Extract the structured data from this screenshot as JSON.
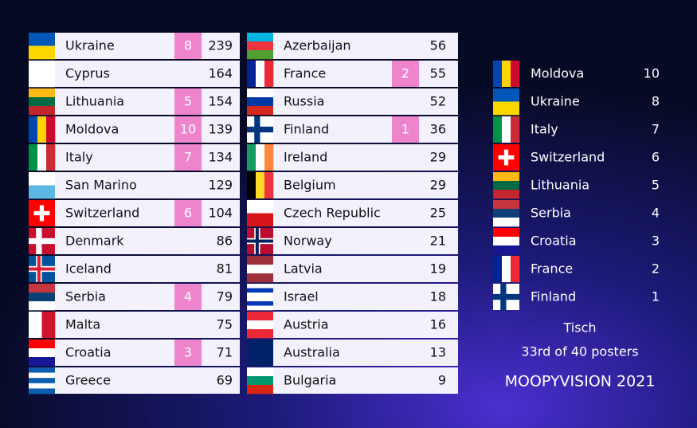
{
  "scoreboard": {
    "columns": [
      [
        {
          "country": "Ukraine",
          "points": 8,
          "total": 239
        },
        {
          "country": "Cyprus",
          "points": null,
          "total": 164
        },
        {
          "country": "Lithuania",
          "points": 5,
          "total": 154
        },
        {
          "country": "Moldova",
          "points": 10,
          "total": 139
        },
        {
          "country": "Italy",
          "points": 7,
          "total": 134
        },
        {
          "country": "San Marino",
          "points": null,
          "total": 129
        },
        {
          "country": "Switzerland",
          "points": 6,
          "total": 104
        },
        {
          "country": "Denmark",
          "points": null,
          "total": 86
        },
        {
          "country": "Iceland",
          "points": null,
          "total": 81
        },
        {
          "country": "Serbia",
          "points": 4,
          "total": 79
        },
        {
          "country": "Malta",
          "points": null,
          "total": 75
        },
        {
          "country": "Croatia",
          "points": 3,
          "total": 71
        },
        {
          "country": "Greece",
          "points": null,
          "total": 69
        }
      ],
      [
        {
          "country": "Azerbaijan",
          "points": null,
          "total": 56
        },
        {
          "country": "France",
          "points": 2,
          "total": 55
        },
        {
          "country": "Russia",
          "points": null,
          "total": 52
        },
        {
          "country": "Finland",
          "points": 1,
          "total": 36
        },
        {
          "country": "Ireland",
          "points": null,
          "total": 29
        },
        {
          "country": "Belgium",
          "points": null,
          "total": 29
        },
        {
          "country": "Czech Republic",
          "points": null,
          "total": 25
        },
        {
          "country": "Norway",
          "points": null,
          "total": 21
        },
        {
          "country": "Latvia",
          "points": null,
          "total": 19
        },
        {
          "country": "Israel",
          "points": null,
          "total": 18
        },
        {
          "country": "Austria",
          "points": null,
          "total": 16
        },
        {
          "country": "Australia",
          "points": null,
          "total": 13
        },
        {
          "country": "Bulgaria",
          "points": null,
          "total": 9
        }
      ]
    ]
  },
  "received": [
    {
      "country": "Moldova",
      "points": 10
    },
    {
      "country": "Ukraine",
      "points": 8
    },
    {
      "country": "Italy",
      "points": 7
    },
    {
      "country": "Switzerland",
      "points": 6
    },
    {
      "country": "Lithuania",
      "points": 5
    },
    {
      "country": "Serbia",
      "points": 4
    },
    {
      "country": "Croatia",
      "points": 3
    },
    {
      "country": "France",
      "points": 2
    },
    {
      "country": "Finland",
      "points": 1
    }
  ],
  "footer": {
    "juror": "Tisch",
    "rank": "33rd of 40 posters",
    "show": "MOOPYVISION 2021"
  }
}
